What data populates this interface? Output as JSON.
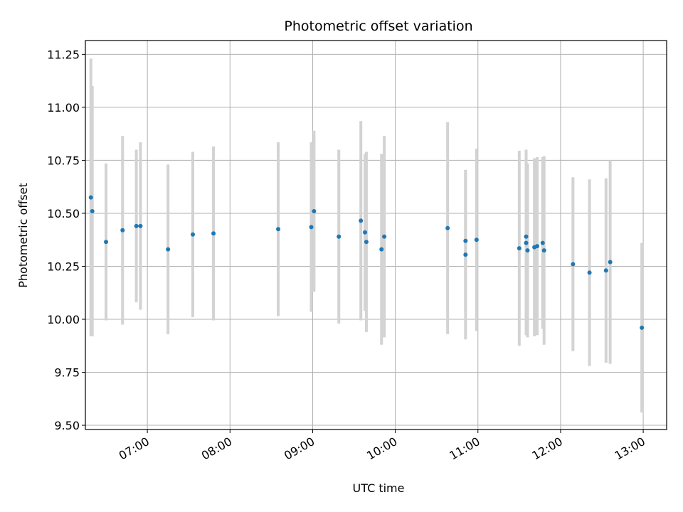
{
  "chart_data": {
    "type": "scatter",
    "title": "Photometric offset variation",
    "xlabel": "UTC time",
    "ylabel": "Photometric offset",
    "x_ticks": [
      "07:00",
      "08:00",
      "09:00",
      "10:00",
      "11:00",
      "12:00",
      "13:00"
    ],
    "y_ticks": [
      "9.50",
      "9.75",
      "10.00",
      "10.25",
      "10.50",
      "10.75",
      "11.00",
      "11.25"
    ],
    "xlim": [
      "06:15",
      "13:17"
    ],
    "ylim": [
      9.48,
      11.315
    ],
    "grid": true,
    "point_color": "#1f77b4",
    "errorbar_color": "#d3d3d3",
    "series": [
      {
        "points": [
          {
            "t": "06:19",
            "y": 10.575,
            "err": 0.655
          },
          {
            "t": "06:20",
            "y": 10.51,
            "err": 0.59
          },
          {
            "t": "06:30",
            "y": 10.365,
            "err": 0.37
          },
          {
            "t": "06:42",
            "y": 10.42,
            "err": 0.445
          },
          {
            "t": "06:52",
            "y": 10.44,
            "err": 0.36
          },
          {
            "t": "06:55",
            "y": 10.44,
            "err": 0.395
          },
          {
            "t": "07:15",
            "y": 10.33,
            "err": 0.4
          },
          {
            "t": "07:33",
            "y": 10.4,
            "err": 0.39
          },
          {
            "t": "07:48",
            "y": 10.405,
            "err": 0.41
          },
          {
            "t": "08:35",
            "y": 10.425,
            "err": 0.41
          },
          {
            "t": "08:59",
            "y": 10.435,
            "err": 0.4
          },
          {
            "t": "09:01",
            "y": 10.51,
            "err": 0.38
          },
          {
            "t": "09:19",
            "y": 10.39,
            "err": 0.41
          },
          {
            "t": "09:35",
            "y": 10.465,
            "err": 0.47
          },
          {
            "t": "09:38",
            "y": 10.41,
            "err": 0.37
          },
          {
            "t": "09:39",
            "y": 10.365,
            "err": 0.425
          },
          {
            "t": "09:50",
            "y": 10.33,
            "err": 0.45
          },
          {
            "t": "09:52",
            "y": 10.39,
            "err": 0.475
          },
          {
            "t": "10:38",
            "y": 10.43,
            "err": 0.5
          },
          {
            "t": "10:51",
            "y": 10.37,
            "err": 0.335
          },
          {
            "t": "10:51",
            "y": 10.305,
            "err": 0.4
          },
          {
            "t": "10:59",
            "y": 10.375,
            "err": 0.43
          },
          {
            "t": "11:30",
            "y": 10.335,
            "err": 0.46
          },
          {
            "t": "11:35",
            "y": 10.39,
            "err": 0.41
          },
          {
            "t": "11:35",
            "y": 10.36,
            "err": 0.435
          },
          {
            "t": "11:36",
            "y": 10.325,
            "err": 0.41
          },
          {
            "t": "11:41",
            "y": 10.34,
            "err": 0.42
          },
          {
            "t": "11:43",
            "y": 10.345,
            "err": 0.42
          },
          {
            "t": "11:47",
            "y": 10.36,
            "err": 0.405
          },
          {
            "t": "11:48",
            "y": 10.325,
            "err": 0.445
          },
          {
            "t": "12:09",
            "y": 10.26,
            "err": 0.41
          },
          {
            "t": "12:21",
            "y": 10.22,
            "err": 0.44
          },
          {
            "t": "12:33",
            "y": 10.23,
            "err": 0.435
          },
          {
            "t": "12:36",
            "y": 10.27,
            "err": 0.48
          },
          {
            "t": "12:59",
            "y": 9.96,
            "err": 0.4
          }
        ]
      }
    ]
  }
}
